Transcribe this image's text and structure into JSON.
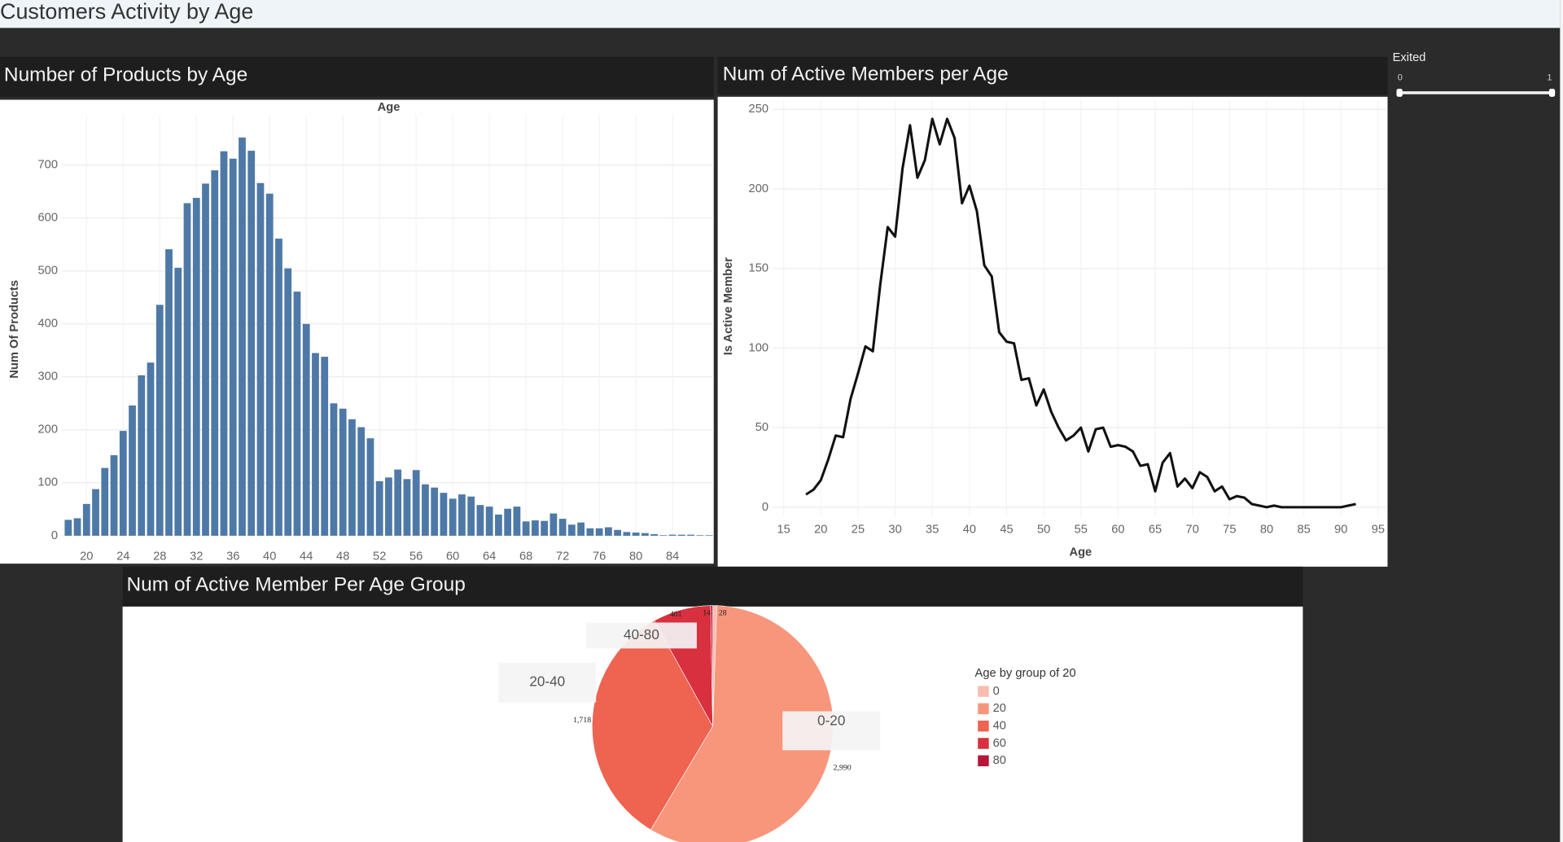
{
  "dashboard_title": "Customers Activity by Age",
  "filter": {
    "label": "Exited",
    "min": 0,
    "max": 1
  },
  "chart_data": [
    {
      "type": "bar",
      "title": "Number of Products by Age",
      "x_label": "Age",
      "y_label": "Num Of Products",
      "color": "#4e79a7",
      "x": [
        18,
        19,
        20,
        21,
        22,
        23,
        24,
        25,
        26,
        27,
        28,
        29,
        30,
        31,
        32,
        33,
        34,
        35,
        36,
        37,
        38,
        39,
        40,
        41,
        42,
        43,
        44,
        45,
        46,
        47,
        48,
        49,
        50,
        51,
        52,
        53,
        54,
        55,
        56,
        57,
        58,
        59,
        60,
        61,
        62,
        63,
        64,
        65,
        66,
        67,
        68,
        69,
        70,
        71,
        72,
        73,
        74,
        75,
        76,
        77,
        78,
        79,
        80,
        81,
        82,
        83,
        84,
        85,
        86,
        87,
        88
      ],
      "values": [
        30,
        33,
        60,
        88,
        128,
        152,
        198,
        246,
        303,
        327,
        436,
        541,
        506,
        628,
        638,
        665,
        690,
        726,
        712,
        752,
        727,
        666,
        646,
        561,
        505,
        461,
        400,
        345,
        338,
        250,
        240,
        220,
        205,
        184,
        103,
        110,
        125,
        107,
        124,
        97,
        91,
        81,
        70,
        78,
        74,
        58,
        55,
        40,
        51,
        55,
        27,
        29,
        28,
        42,
        32,
        21,
        25,
        14,
        14,
        16,
        11,
        7,
        6,
        5,
        3,
        1,
        2,
        2,
        2,
        1,
        1
      ],
      "xlim": [
        17.3,
        88.5
      ],
      "xticks": [
        20,
        24,
        28,
        32,
        36,
        40,
        44,
        48,
        52,
        56,
        60,
        64,
        68,
        72,
        76,
        80,
        84
      ],
      "ylim": [
        0,
        795
      ],
      "yticks": [
        0,
        100,
        200,
        300,
        400,
        500,
        600,
        700
      ],
      "grid": true
    },
    {
      "type": "line",
      "title": "Num of Active Members per Age",
      "x_label": "Age",
      "y_label": "Is Active Member",
      "color": "#111111",
      "x": [
        18,
        19,
        20,
        21,
        22,
        23,
        24,
        25,
        26,
        27,
        28,
        29,
        30,
        31,
        32,
        33,
        34,
        35,
        36,
        37,
        38,
        39,
        40,
        41,
        42,
        43,
        44,
        45,
        46,
        47,
        48,
        49,
        50,
        51,
        52,
        53,
        54,
        55,
        56,
        57,
        58,
        59,
        60,
        61,
        62,
        63,
        64,
        65,
        66,
        67,
        68,
        69,
        70,
        71,
        72,
        73,
        74,
        75,
        76,
        77,
        78,
        79,
        80,
        81,
        82,
        83,
        84,
        85,
        86,
        87,
        88,
        89,
        90,
        91,
        92
      ],
      "values": [
        8,
        11,
        17,
        30,
        45,
        44,
        68,
        84,
        101,
        98,
        140,
        176,
        170,
        213,
        240,
        207,
        218,
        244,
        228,
        244,
        232,
        191,
        202,
        186,
        152,
        145,
        110,
        104,
        103,
        80,
        81,
        64,
        74,
        60,
        50,
        42,
        45,
        50,
        35,
        49,
        50,
        38,
        39,
        38,
        35,
        26,
        27,
        10,
        28,
        34,
        13,
        18,
        12,
        22,
        19,
        10,
        13,
        5,
        7,
        6,
        2,
        1,
        0,
        1,
        0,
        0,
        0,
        0,
        0,
        0,
        0,
        0,
        0,
        1,
        2
      ],
      "xlim": [
        13.5,
        96
      ],
      "xticks": [
        15,
        20,
        25,
        30,
        35,
        40,
        45,
        50,
        55,
        60,
        65,
        70,
        75,
        80,
        85,
        90,
        95
      ],
      "ylim": [
        -6,
        256
      ],
      "yticks": [
        0,
        50,
        100,
        150,
        200,
        250
      ],
      "grid": true
    },
    {
      "type": "pie",
      "title": "Num of Active Member Per Age Group",
      "legend_title": "Age by group of 20",
      "categories": [
        "0",
        "20",
        "40",
        "60",
        "80"
      ],
      "values": [
        28,
        2990,
        1718,
        401,
        14
      ],
      "value_labels": [
        "28",
        "2,990",
        "1,718",
        "401",
        "14"
      ],
      "colors": [
        "#f9bcae",
        "#f8967c",
        "#ef6351",
        "#d8303e",
        "#b8153a"
      ],
      "annotations": [
        "0-20",
        "20-40",
        "40-80"
      ],
      "legend": "right"
    }
  ]
}
